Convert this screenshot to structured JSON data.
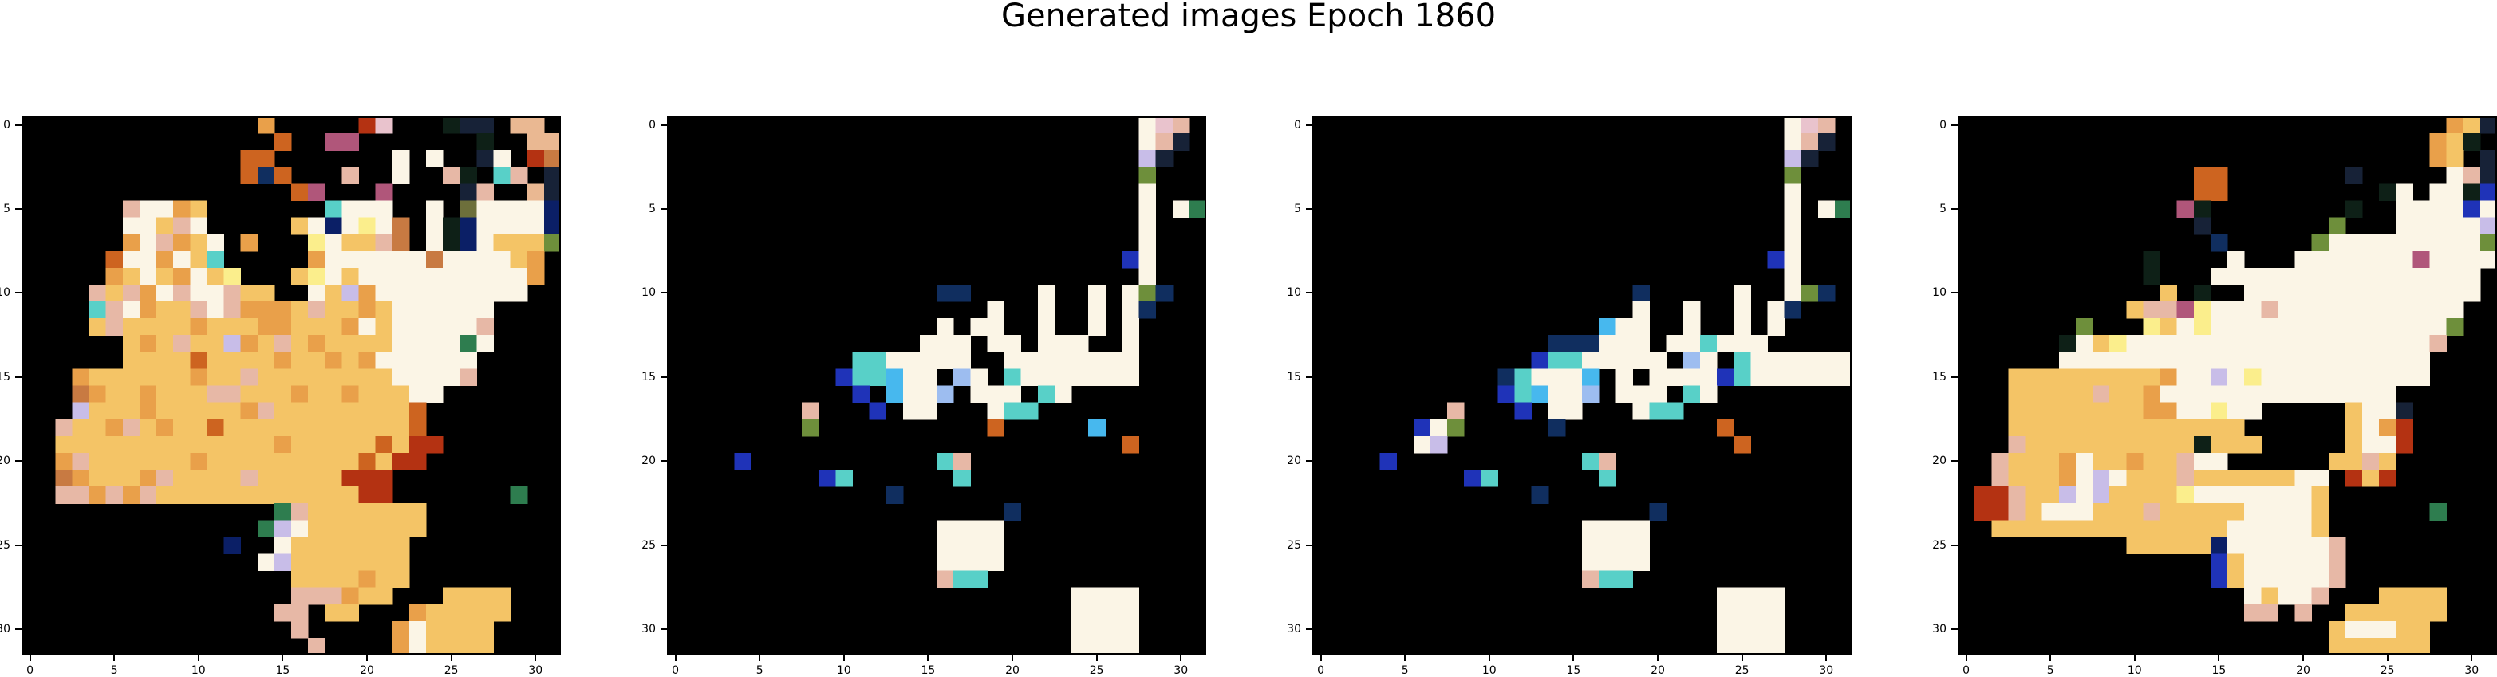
{
  "title": "Generated images Epoch 1860",
  "chart_data": {
    "type": "heatmap",
    "title": "Generated images Epoch 1860",
    "grid": false,
    "panels": [
      {
        "name": "image-1",
        "shape": [
          32,
          32
        ],
        "xticks": [
          "0",
          "5",
          "10",
          "15",
          "20",
          "25",
          "30"
        ],
        "yticks": [
          "0",
          "5",
          "10",
          "15",
          "20",
          "25",
          "30"
        ],
        "rows": [
          "..............x.....rs...hkk.tt.",
          "...............o..mm.......h..tt",
          ".............oo.......w.w..kw.ru",
          ".............ono...p..w..ph.cp.k",
          "................om...m....kp..tk",
          "......pwwxy.......cwww..w.jwwwwb",
          "......wwypw.....ywbwzwu.whbwwwwb",
          "......xwpxyw.x...zwyypu.whbwyyyg",
          ".....owwxwyc.....xwwwwwwuwwwwyx.",
          ".....xywyxwyz...yzwywwwwwwwwwwx.",
          "....pypxwpwwpyy..wyvxwwwwwwwww..",
          "....cpwxyypwpxxxypyyxywwwwww....",
          "....ypyyyyxyyyxxyyyxwywwwwwp....",
          "......yxypyyvxypyxyyyywwwwqw....",
          "......yyyyoyyyyxyyxyxwwwwww.....",
          "...xyyyyyyxyypyyyyyyyywwwwp.....",
          "...uxyyxyyyppyyyxyyxyyyww.......",
          "...vyyyxyyyyyxpyyyyyyyyo........",
          "..pyyxpyxyyoyyyyyyyyyyyo........",
          "..yyyyyyyyyyyyyxyyyyyoyrr.......",
          "..xpyyyyyyxyyyyyyyyyoyrr........",
          "..uxyyyxpyyyypyyyyyrrr..........",
          "..ppxpxpyyyyyyyyyyyyrr.......q..",
          "...............qpyyyyyyy........",
          "..............qvwyyyyyyy........",
          "............b..wyyyyyyy.........",
          "..............wvyyyyyyy.........",
          "................yyyyxyy.........",
          "................pppxyy...yyyy...",
          "...............pp.yy...xyyyyy...",
          "................p.....xwyyyy....",
          ".................p....xwyyyy...."
        ]
      },
      {
        "name": "image-2",
        "shape": [
          32,
          32
        ],
        "xticks": [
          "0",
          "5",
          "10",
          "15",
          "20",
          "25",
          "30"
        ],
        "yticks": [
          "0",
          "5",
          "10",
          "15",
          "20",
          "25",
          "30"
        ],
        "rows": [
          "............................wsp.",
          "............................wpk.",
          "............................vk..",
          "............................g...",
          "............................w...",
          "............................w.wq",
          "............................w...",
          "............................w...",
          "...........................dw...",
          "............................w...",
          "................nn....w..w.wgn..",
          "...................w..w..w.wn...",
          "................w.ww..w..w.w....",
          "...............www.ww.www..w....",
          "...........ccwwwww..wwwwwwww....",
          "..........dcceww.lw.cwwwwwww....",
          "...........d.ewwl.www.cw........",
          "........p...d.ww...wcc..........",
          "........g..........o.....e.....",
          "...........................o....",
          "....d...........cp..............",
          ".........dc......c..............",
          ".............n..................",
          "....................n...........",
          "................wwww............",
          "................wwww............",
          "................wwww............",
          "................pcc.............",
          "........................wwww....",
          "........................wwww....",
          "........................wwww....",
          "........................wwww...."
        ]
      },
      {
        "name": "image-3",
        "shape": [
          32,
          32
        ],
        "xticks": [
          "0",
          "5",
          "10",
          "15",
          "20",
          "25",
          "30"
        ],
        "yticks": [
          "0",
          "5",
          "10",
          "15",
          "20",
          "25",
          "30"
        ],
        "rows": [
          "............................wsp.",
          "............................wpk.",
          "............................vk..",
          "............................g...",
          "............................w...",
          "............................w.wq",
          "............................w...",
          "............................w...",
          "...........................dw...",
          "............................w...",
          "...................n.....w..wgn.",
          "...................w..w..w.wn...",
          ".................eww..w..w.w....",
          "..............nnnwww.wwcwww.....",
          ".............dccwwwww.lw.cwwwwww",
          "...........ncwwwe.w.wwwwdcwwwwww",
          "...........dcewwl.www.cw........",
          "........p...d.ww...wcc..........",
          "......dwg.....n.........o.......",
          "......wv.................o......",
          "....d...........cp..............",
          ".........dc......c..............",
          ".............n..................",
          "....................n...........",
          "................wwww............",
          "................wwww............",
          "................wwww............",
          "................pcc.............",
          "........................wwww....",
          "........................wwww....",
          "........................wwww....",
          "........................wwww...."
        ]
      },
      {
        "name": "image-4",
        "shape": [
          32,
          32
        ],
        "xticks": [
          "0",
          "5",
          "10",
          "15",
          "20",
          "25",
          "30"
        ],
        "yticks": [
          "0",
          "5",
          "10",
          "15",
          "20",
          "25",
          "30"
        ],
        "rows": [
          ".............................xyk",
          "............................xyh.",
          "............................xy.k",
          "..............oo.......k.....wpk",
          "..............oo.........hw.wwhd",
          ".............mh........h..wwwwdw",
          "..............k.......g...wwwwwv",
          "...............n.....gwwwwwwwwwg",
          "...........h....w...wwwwwwwmwwww",
          "...........h...wwwwwwwwwwwwwwww.",
          "............y.h..wwwwwwwwwwwwww.",
          "..........yppmzwwwpwwwwwwwwwww..",
          ".......g...zywzwwwwwwwwwwwwwwg..",
          "......hwyzwwwwwwwwwwwwwwwwwwp...",
          "......wwwwwwwwwwwwwwwwwwwwww....",
          "...yyyyyyyyyxwwvwzwwwwwwwwww....",
          "...yyyyypyyxwwwwwwwwwwwwww......",
          "...yyyyyyyyxxwwzww.....ywwk.....",
          "...yyyyyyyyyyyyyy......ywxr.....",
          "...pyyyyyyyyyyhyyy.....ywwr.....",
          "..pyyyxwyyxyypww......yypy......",
          "..pyyyxwvwyyypyyyyyyww.ryr......",
          ".rrpyyvwvyyyyzwwwwwwwy..........",
          ".rrpywwwyyypyyyyywwwwy......q...",
          "..yyyyyyyyyyyyyywwwwwy..........",
          "..........yyyyybwwwwwwp.........",
          "...............dywwwwwp.........",
          "...............dywwwwwp.........",
          ".................wywwp...yyyy...",
          ".................pp.p..yyyyyy...",
          "......................ywwwyy....",
          "......................yyyyyy...."
        ]
      }
    ],
    "palette": {
      ".": "#000000",
      "w": "#fbf5e6",
      "y": "#f4c466",
      "x": "#e9a04a",
      "o": "#cd6420",
      "r": "#b43212",
      "p": "#e7b8a6",
      "m": "#b0567a",
      "v": "#c8bde8",
      "s": "#e9c3cd",
      "t": "#eab892",
      "g": "#6e8f3b",
      "q": "#2e7d4f",
      "h": "#0e2017",
      "k": "#172237",
      "z": "#fbee8c",
      "u": "#c87a42",
      "b": "#0b1f66",
      "c": "#58d0c8",
      "d": "#1f33b8",
      "e": "#47b8ee",
      "l": "#9dbdf0",
      "n": "#102e5f",
      "j": "#6d6f3b"
    }
  }
}
